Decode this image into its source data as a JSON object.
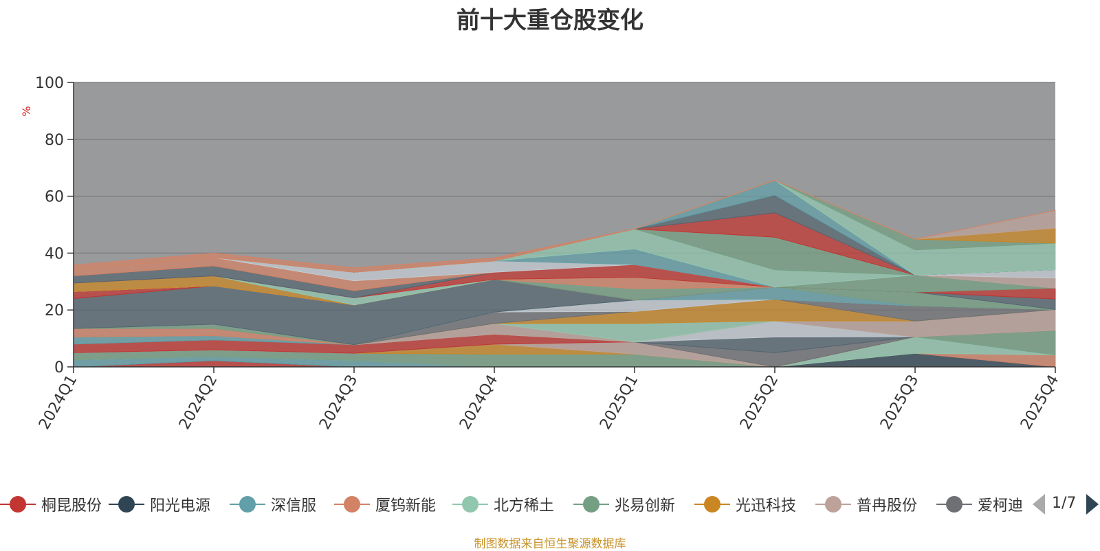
{
  "chart_data": {
    "type": "area",
    "stacked": true,
    "title": "前十大重仓股变化",
    "ylabel": "%",
    "ylim": [
      0,
      100
    ],
    "yticks": [
      0,
      20,
      40,
      60,
      80,
      100
    ],
    "grid": true,
    "categories": [
      "2024Q1",
      "2024Q2",
      "2024Q3",
      "2024Q4",
      "2025Q1",
      "2025Q2",
      "2025Q3",
      "2025Q4"
    ],
    "series": [
      {
        "name": "桐昆股份",
        "color": "#c23531",
        "values": [
          0,
          2.2,
          0,
          0,
          0,
          0,
          0,
          0
        ]
      },
      {
        "name": "阳光电源",
        "color": "#2f4554",
        "values": [
          0,
          0,
          0,
          0,
          0,
          0,
          4.8,
          0
        ]
      },
      {
        "name": "深信服",
        "color": "#61a0a8",
        "values": [
          2.5,
          1.5,
          2.3,
          0,
          0,
          0,
          0,
          0
        ]
      },
      {
        "name": "厦钨新能",
        "color": "#d48265",
        "values": [
          0,
          0,
          0,
          0,
          0,
          0,
          0,
          4.2
        ]
      },
      {
        "name": "北方稀土",
        "color": "#91c7ae",
        "values": [
          0,
          0,
          0,
          0,
          0,
          0,
          5.8,
          0
        ]
      },
      {
        "name": "兆易创新",
        "color": "#749f83",
        "values": [
          2.5,
          2.3,
          2.5,
          4.5,
          4.5,
          0,
          0,
          8.7
        ]
      },
      {
        "name": "光迅科技",
        "color": "#ca8622",
        "values": [
          0,
          0,
          0,
          3.5,
          0,
          0,
          0,
          0
        ]
      },
      {
        "name": "普冉股份",
        "color": "#bda29a",
        "values": [
          0,
          0,
          0,
          0,
          4.3,
          0,
          0,
          0
        ]
      },
      {
        "name": "爱柯迪",
        "color": "#6e7074",
        "values": [
          0,
          0,
          0,
          0,
          0,
          5,
          0,
          0
        ]
      },
      {
        "name": "",
        "color": "#546570",
        "values": [
          0,
          0,
          0,
          0,
          0,
          5.5,
          0,
          0
        ]
      },
      {
        "name": "",
        "color": "#c4ccd3",
        "values": [
          0,
          0,
          0,
          0,
          0,
          5.7,
          0,
          0
        ]
      },
      {
        "name": "",
        "color": "#c23531",
        "values": [
          3,
          3.5,
          3,
          3.5,
          0,
          0,
          0,
          0
        ]
      },
      {
        "name": "",
        "color": "#61a0a8",
        "values": [
          2.5,
          1.5,
          0,
          0,
          0,
          0,
          0,
          0
        ]
      },
      {
        "name": "",
        "color": "#d48265",
        "values": [
          3,
          2.5,
          0,
          0,
          0,
          0,
          0,
          0
        ]
      },
      {
        "name": "",
        "color": "#749f83",
        "values": [
          0,
          1.5,
          0,
          0,
          0,
          0,
          0,
          0
        ]
      },
      {
        "name": "",
        "color": "#bda29a",
        "values": [
          0,
          0,
          0,
          3.8,
          0,
          0,
          5.5,
          7.3
        ]
      },
      {
        "name": "",
        "color": "#91c7ae",
        "values": [
          0,
          0,
          0,
          0,
          6.5,
          0,
          0,
          0
        ]
      },
      {
        "name": "",
        "color": "#ca8622",
        "values": [
          0,
          0,
          0,
          0,
          4.2,
          7.6,
          0,
          0
        ]
      },
      {
        "name": "",
        "color": "#6e7074",
        "values": [
          0,
          0,
          0,
          4,
          0,
          0,
          5.4,
          0
        ]
      },
      {
        "name": "",
        "color": "#c4ccd3",
        "values": [
          0,
          0,
          0,
          0,
          4,
          0,
          0,
          0
        ]
      },
      {
        "name": "",
        "color": "#61a0a8",
        "values": [
          0,
          0,
          0,
          0,
          0,
          4.3,
          0,
          0
        ]
      },
      {
        "name": "",
        "color": "#749f83",
        "values": [
          0,
          0,
          0,
          0,
          0,
          0,
          4.8,
          0
        ]
      },
      {
        "name": "",
        "color": "#546570",
        "values": [
          10.5,
          13.5,
          14,
          11.5,
          0,
          0,
          0,
          3.7
        ]
      },
      {
        "name": "",
        "color": "#c23531",
        "values": [
          2.5,
          0,
          0,
          0,
          0,
          0,
          0,
          3.8
        ]
      },
      {
        "name": "",
        "color": "#749f83",
        "values": [
          0,
          0,
          0,
          0,
          4,
          0,
          6,
          0
        ]
      },
      {
        "name": "",
        "color": "#bda29a",
        "values": [
          0,
          0,
          0,
          0,
          0,
          0,
          0,
          3.5
        ]
      },
      {
        "name": "",
        "color": "#d48265",
        "values": [
          0,
          0,
          0,
          0,
          4,
          0,
          0,
          0
        ]
      },
      {
        "name": "",
        "color": "#c4ccd3",
        "values": [
          0,
          0,
          0,
          0,
          0,
          0,
          0,
          3
        ]
      },
      {
        "name": "",
        "color": "#ca8622",
        "values": [
          3,
          3.5,
          0,
          0,
          0,
          0,
          0,
          0
        ]
      },
      {
        "name": "",
        "color": "#91c7ae",
        "values": [
          0,
          0,
          2.5,
          0,
          0,
          0,
          0,
          0
        ]
      },
      {
        "name": "",
        "color": "#c23531",
        "values": [
          0,
          0,
          0,
          2.5,
          4.5,
          0,
          0,
          0
        ]
      },
      {
        "name": "",
        "color": "#546570",
        "values": [
          2.5,
          3.5,
          2.5,
          0,
          0,
          0,
          0,
          0
        ]
      },
      {
        "name": "",
        "color": "#d48265",
        "values": [
          2.3,
          3,
          3.5,
          0,
          0,
          0,
          0,
          0
        ]
      },
      {
        "name": "",
        "color": "#c4ccd3",
        "values": [
          0,
          0,
          3,
          4,
          0,
          0,
          0,
          0
        ]
      },
      {
        "name": "",
        "color": "#61a0a8",
        "values": [
          0,
          0,
          0,
          0,
          5.5,
          0,
          0,
          0
        ]
      },
      {
        "name": "",
        "color": "#91c7ae",
        "values": [
          0,
          0,
          0,
          0,
          7,
          6,
          0,
          0
        ]
      },
      {
        "name": "",
        "color": "#749f83",
        "values": [
          0,
          0,
          0,
          0,
          0,
          11.5,
          0,
          0
        ]
      },
      {
        "name": "",
        "color": "#c23531",
        "values": [
          0,
          0,
          0,
          0,
          0,
          8.6,
          0,
          0
        ]
      },
      {
        "name": "",
        "color": "#546570",
        "values": [
          0,
          0,
          0,
          0,
          0,
          6.2,
          0,
          0
        ]
      },
      {
        "name": "",
        "color": "#61a0a8",
        "values": [
          0,
          0,
          0,
          0,
          0,
          5.2,
          0,
          0
        ]
      },
      {
        "name": "",
        "color": "#91c7ae",
        "values": [
          0,
          0,
          0,
          0,
          0,
          0,
          8.8,
          9.3
        ]
      },
      {
        "name": "",
        "color": "#749f83",
        "values": [
          0,
          0,
          0,
          0,
          0,
          0,
          3.8,
          0
        ]
      },
      {
        "name": "",
        "color": "#ca8622",
        "values": [
          0,
          0,
          0,
          0,
          0,
          0,
          0,
          5.3
        ]
      },
      {
        "name": "",
        "color": "#bda29a",
        "values": [
          0,
          0,
          0,
          0,
          0,
          0,
          0,
          6.2
        ]
      },
      {
        "name": "",
        "color": "#d48265",
        "values": [
          1.5,
          1.5,
          1.5,
          1,
          0,
          0,
          0,
          0
        ]
      }
    ]
  },
  "legend": {
    "items": [
      {
        "name": "桐昆股份",
        "color": "#c23531"
      },
      {
        "name": "阳光电源",
        "color": "#2f4554"
      },
      {
        "name": "深信服",
        "color": "#61a0a8"
      },
      {
        "name": "厦钨新能",
        "color": "#d48265"
      },
      {
        "name": "北方稀土",
        "color": "#91c7ae"
      },
      {
        "name": "兆易创新",
        "color": "#749f83"
      },
      {
        "name": "光迅科技",
        "color": "#ca8622"
      },
      {
        "name": "普冉股份",
        "color": "#bda29a"
      },
      {
        "name": "爱柯迪",
        "color": "#6e7074"
      }
    ],
    "page_indicator": "1/7"
  },
  "source": "制图数据来自恒生聚源数据库",
  "colors": {
    "plot_background": "#999a9c",
    "grid": "#7e7f81",
    "axis": "#333333"
  }
}
